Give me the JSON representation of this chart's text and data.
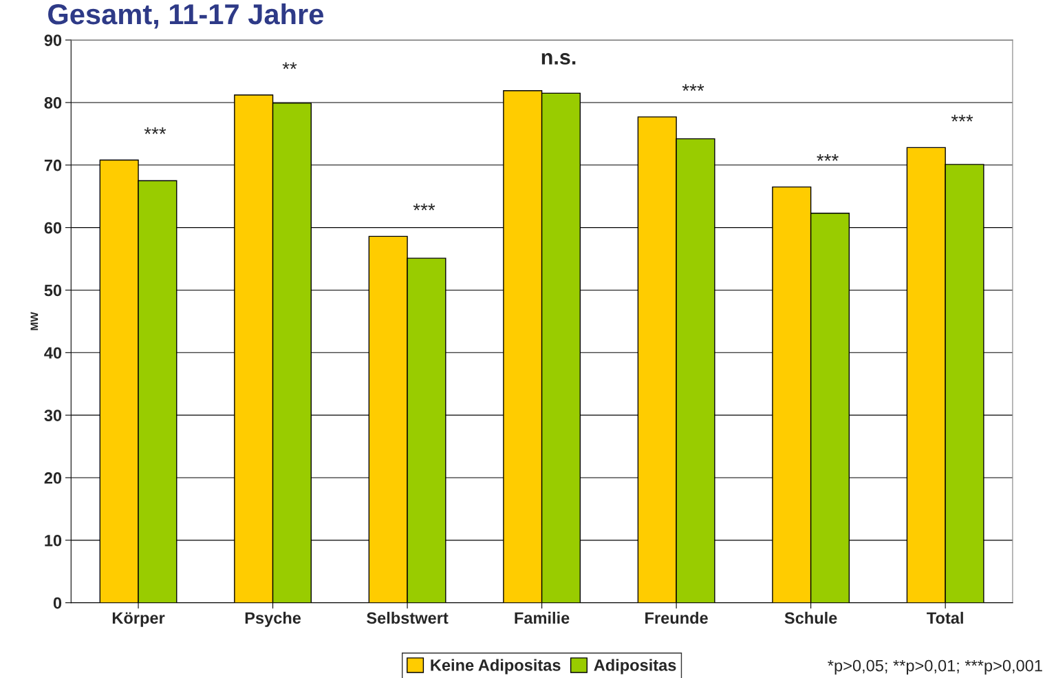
{
  "chart_data": {
    "type": "bar",
    "title": "Gesamt, 11-17 Jahre",
    "ylabel": "MW",
    "categories": [
      "Körper",
      "Psyche",
      "Selbstwert",
      "Familie",
      "Freunde",
      "Schule",
      "Total"
    ],
    "series": [
      {
        "name": "Keine Adipositas",
        "color": "#ffcc00",
        "values": [
          70.8,
          81.2,
          58.6,
          81.9,
          77.7,
          66.5,
          72.8
        ]
      },
      {
        "name": "Adipositas",
        "color": "#99cc00",
        "values": [
          67.5,
          79.9,
          55.1,
          81.5,
          74.2,
          62.3,
          70.1
        ]
      }
    ],
    "ylim": [
      0,
      90
    ],
    "yticks": [
      0,
      10,
      20,
      30,
      40,
      50,
      60,
      70,
      80,
      90
    ],
    "grid": "y",
    "legend": "bottom",
    "annotations": [
      "***",
      "**",
      "***",
      "n.s.",
      "***",
      "***",
      "***",
      "*p>0,05; **p>0,01; ***p>0,001"
    ]
  }
}
